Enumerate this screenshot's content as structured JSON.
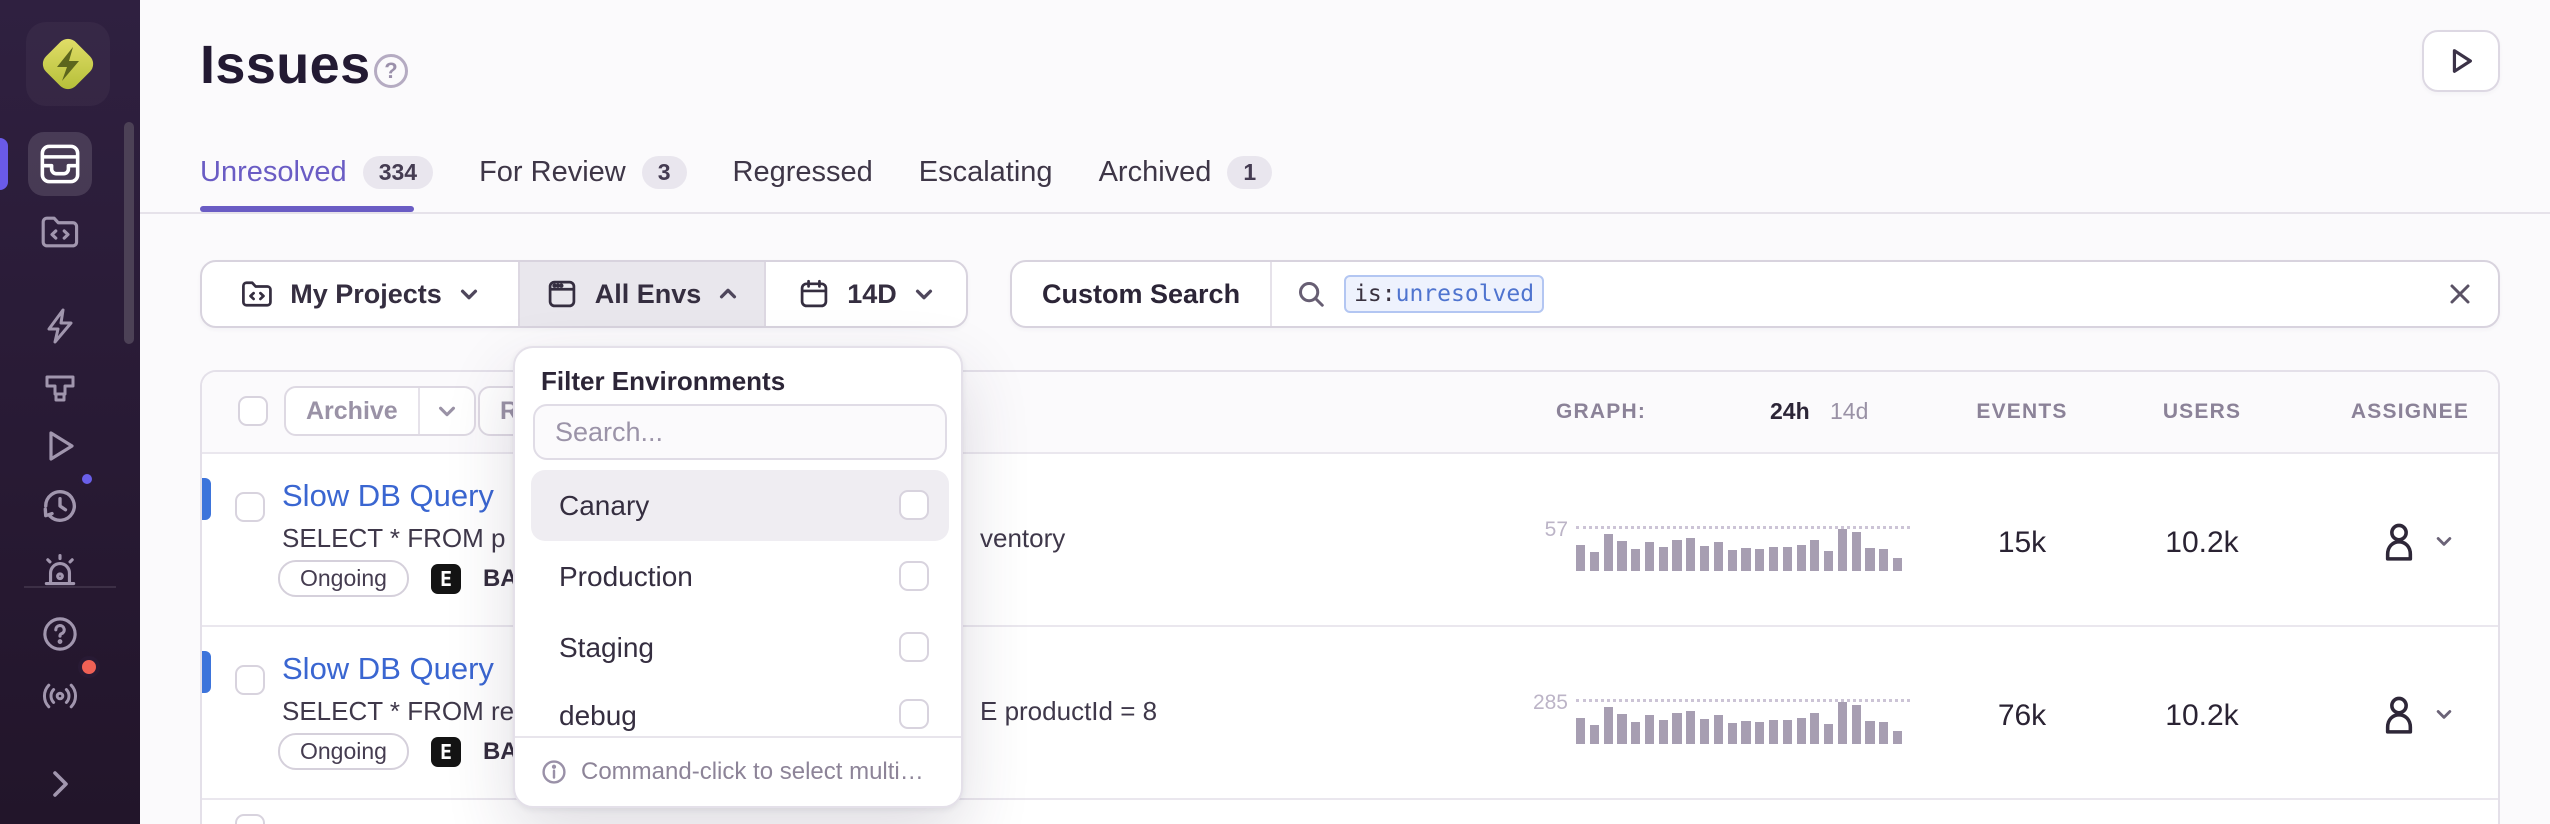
{
  "colors": {
    "accent_purple": "#6A5CC4",
    "link_blue": "#3A66D1",
    "sidebar_bg": "#2B1D38",
    "level_bar_blue": "#3D74DB",
    "notification_red": "#EF6155",
    "notification_blue": "#6A5FEA"
  },
  "header": {
    "title": "Issues"
  },
  "tabs": [
    {
      "label": "Unresolved",
      "count": "334"
    },
    {
      "label": "For Review",
      "count": "3"
    },
    {
      "label": "Regressed"
    },
    {
      "label": "Escalating"
    },
    {
      "label": "Archived",
      "count": "1"
    }
  ],
  "filter_bar": {
    "projects_label": "My Projects",
    "envs_label": "All Envs",
    "date_label": "14D"
  },
  "search": {
    "label": "Custom Search",
    "token_key": "is:",
    "token_value": "unresolved"
  },
  "env_dropdown": {
    "title": "Filter Environments",
    "search_placeholder": "Search...",
    "options": [
      {
        "label": "Canary"
      },
      {
        "label": "Production"
      },
      {
        "label": "Staging"
      },
      {
        "label": "debug"
      }
    ],
    "footer_hint": "Command-click to select multi…"
  },
  "table": {
    "toolbar": {
      "archive_label": "Archive",
      "resolve_label": "Resolve"
    },
    "columns": {
      "graph_label": "GRAPH:",
      "graph_24h": "24h",
      "graph_14d": "14d",
      "events_label": "EVENTS",
      "users_label": "USERS",
      "assignee_label": "ASSIGNEE"
    },
    "rows": [
      {
        "title": "Slow DB Query",
        "subtitle_left": "SELECT * FROM p",
        "subtitle_right": "ventory",
        "status": "Ongoing",
        "platform_letter": "E",
        "project_prefix": "BAC",
        "graph_peak": "57",
        "events": "15k",
        "users": "10.2k",
        "bars": [
          62,
          45,
          88,
          72,
          52,
          68,
          58,
          75,
          78,
          60,
          70,
          50,
          55,
          52,
          58,
          57,
          62,
          73,
          48,
          100,
          92,
          55,
          52,
          30
        ]
      },
      {
        "title": "Slow DB Query",
        "subtitle_left": "SELECT * FROM re",
        "subtitle_right": "E productId = 8",
        "status": "Ongoing",
        "platform_letter": "E",
        "project_prefix": "BAC",
        "graph_peak": "285",
        "events": "76k",
        "users": "10.2k",
        "bars": [
          62,
          45,
          88,
          72,
          52,
          68,
          58,
          75,
          78,
          60,
          70,
          50,
          55,
          52,
          58,
          57,
          62,
          73,
          48,
          100,
          92,
          55,
          52,
          30
        ]
      }
    ]
  }
}
